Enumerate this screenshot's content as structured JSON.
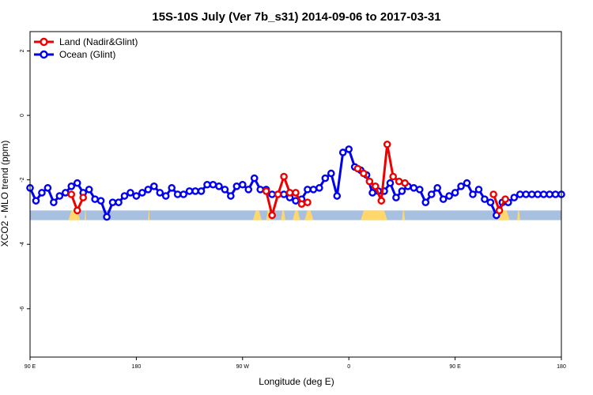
{
  "chart_data": {
    "type": "line",
    "title": "15S-10S July (Ver 7b_s31)   2014-09-06 to 2017-03-31",
    "xlabel": "Longitude (deg E)",
    "ylabel": "XCO2 - MLO trend (ppm)",
    "xlim": [
      90,
      450
    ],
    "ylim": [
      -7.5,
      2.6
    ],
    "x_ticks": [
      90,
      162,
      234,
      306,
      378,
      450
    ],
    "x_tick_labels": [
      "90 E",
      "180",
      "90 W",
      "0",
      "90 E",
      "180"
    ],
    "y_ticks": [
      -6,
      -4,
      -2,
      0,
      2
    ],
    "y_tick_labels": [
      "-6",
      "-4",
      "-2",
      "0",
      "2"
    ],
    "grid": false,
    "legend_position": "top-left",
    "land_mask_band": {
      "y_top": -2.95,
      "y_bottom": -3.25,
      "color": "#a8c0e0"
    },
    "land_fill_color": "#ffd76a",
    "land_segments": [
      [
        116,
        124
      ],
      [
        127,
        128
      ],
      [
        170,
        171
      ],
      [
        241,
        247
      ],
      [
        250,
        253
      ],
      [
        260,
        263
      ],
      [
        268,
        273
      ],
      [
        276,
        282
      ],
      [
        314,
        332
      ],
      [
        342,
        344
      ],
      [
        407,
        415
      ],
      [
        420,
        422
      ]
    ],
    "series": [
      {
        "name": "Ocean (Glint)",
        "color": "#0000ee",
        "x": [
          90,
          94,
          98,
          102,
          106,
          110,
          114,
          118,
          122,
          126,
          130,
          134,
          138,
          142,
          146,
          150,
          154,
          158,
          162,
          166,
          170,
          174,
          178,
          182,
          186,
          190,
          194,
          198,
          202,
          206,
          210,
          214,
          218,
          222,
          226,
          230,
          234,
          238,
          242,
          246,
          250,
          254,
          258,
          262,
          266,
          270,
          274,
          278,
          282,
          286,
          290,
          294,
          298,
          302,
          306,
          310,
          314,
          318,
          322,
          326,
          330,
          334,
          338,
          342,
          346,
          350,
          354,
          358,
          362,
          366,
          370,
          374,
          378,
          382,
          386,
          390,
          394,
          398,
          402,
          406,
          410,
          414,
          418,
          422,
          426,
          430,
          434,
          438,
          442,
          446,
          450
        ],
        "y": [
          -2.25,
          -2.65,
          -2.4,
          -2.25,
          -2.7,
          -2.5,
          -2.4,
          -2.2,
          -2.1,
          -2.4,
          -2.3,
          -2.6,
          -2.65,
          -3.15,
          -2.7,
          -2.7,
          -2.5,
          -2.4,
          -2.5,
          -2.4,
          -2.3,
          -2.2,
          -2.4,
          -2.5,
          -2.25,
          -2.45,
          -2.45,
          -2.35,
          -2.35,
          -2.35,
          -2.15,
          -2.15,
          -2.2,
          -2.3,
          -2.5,
          -2.2,
          -2.15,
          -2.3,
          -1.95,
          -2.3,
          -2.3,
          -2.45,
          -2.45,
          -2.45,
          -2.55,
          -2.65,
          -2.6,
          -2.3,
          -2.3,
          -2.25,
          -1.95,
          -1.8,
          -2.5,
          -1.15,
          -1.05,
          -1.6,
          -1.7,
          -1.85,
          -2.4,
          -2.35,
          -2.35,
          -2.1,
          -2.55,
          -2.35,
          -2.2,
          -2.25,
          -2.3,
          -2.7,
          -2.45,
          -2.25,
          -2.6,
          -2.5,
          -2.4,
          -2.2,
          -2.1,
          -2.45,
          -2.3,
          -2.6,
          -2.7,
          -3.1,
          -2.7,
          -2.7,
          -2.55,
          -2.45,
          -2.45,
          -2.45,
          -2.45,
          -2.45,
          -2.45,
          -2.45,
          -2.45
        ]
      },
      {
        "name": "Land (Nadir&Glint)",
        "color": "#ee0000",
        "x": [
          118,
          122,
          126,
          250,
          254,
          258,
          262,
          266,
          270,
          274,
          278,
          312,
          316,
          320,
          324,
          328,
          332,
          336,
          340,
          344,
          404,
          408,
          412
        ],
        "y": [
          -2.45,
          -2.95,
          -2.55,
          -2.35,
          -3.1,
          -2.45,
          -1.9,
          -2.4,
          -2.4,
          -2.75,
          -2.7,
          -1.65,
          -1.8,
          -2.05,
          -2.2,
          -2.65,
          -0.9,
          -1.9,
          -2.05,
          -2.1,
          -2.45,
          -2.95,
          -2.6
        ]
      }
    ]
  }
}
